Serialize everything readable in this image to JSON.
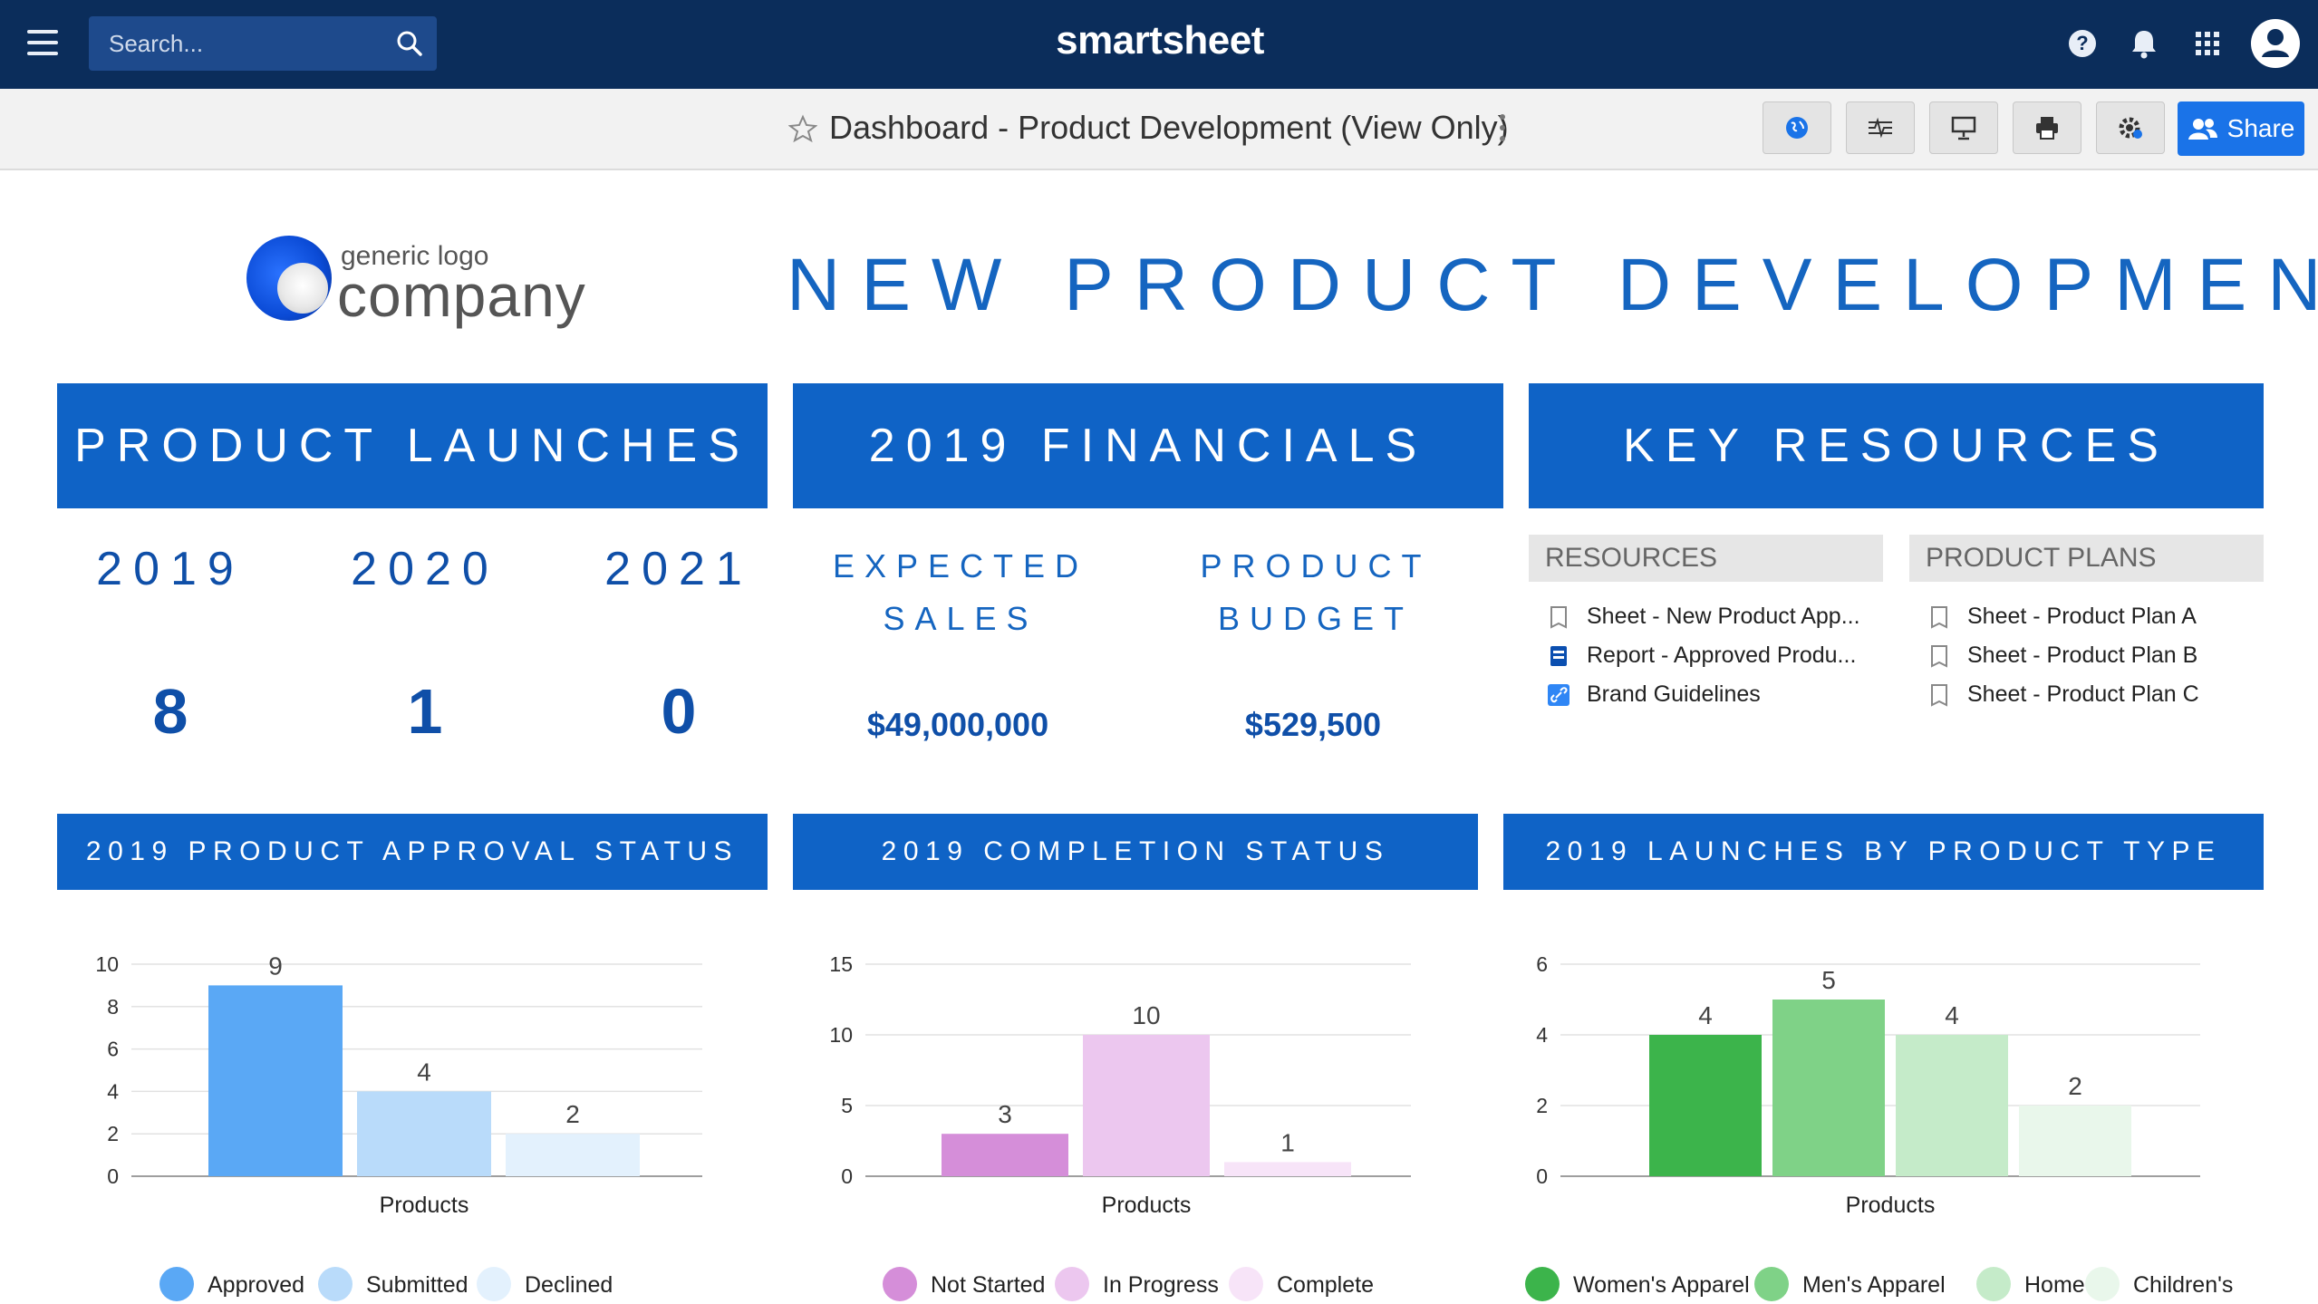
{
  "nav": {
    "search_placeholder": "Search...",
    "brand": "smartsheet"
  },
  "toolbar": {
    "title": "Dashboard - Product Development (View Only)",
    "share_label": "Share"
  },
  "logo": {
    "line1": "generic logo",
    "line2": "company"
  },
  "page_title": "NEW PRODUCT DEVELOPMENT",
  "sections": {
    "launches": "PRODUCT LAUNCHES",
    "financials": "2019 FINANCIALS",
    "resources": "KEY RESOURCES",
    "approval": "2019 PRODUCT APPROVAL STATUS",
    "completion": "2019 COMPLETION STATUS",
    "types": "2019 LAUNCHES BY PRODUCT TYPE"
  },
  "launches": [
    {
      "year": "2019",
      "count": "8"
    },
    {
      "year": "2020",
      "count": "1"
    },
    {
      "year": "2021",
      "count": "0"
    }
  ],
  "financials": {
    "expected_label_1": "EXPECTED",
    "expected_label_2": "SALES",
    "expected_value": "$49,000,000",
    "budget_label_1": "PRODUCT",
    "budget_label_2": "BUDGET",
    "budget_value": "$529,500"
  },
  "resources": {
    "col1_title": "RESOURCES",
    "col1_items": [
      {
        "label": "Sheet - New Product App...",
        "icon": "sheet-icon"
      },
      {
        "label": "Report - Approved Produ...",
        "icon": "report-icon"
      },
      {
        "label": "Brand Guidelines",
        "icon": "link-icon"
      }
    ],
    "col2_title": "PRODUCT PLANS",
    "col2_items": [
      {
        "label": "Sheet - Product Plan A",
        "icon": "sheet-icon"
      },
      {
        "label": "Sheet - Product Plan B",
        "icon": "sheet-icon"
      },
      {
        "label": "Sheet - Product Plan C",
        "icon": "sheet-icon"
      }
    ]
  },
  "chart_data": [
    {
      "type": "bar",
      "categories": [
        "Products"
      ],
      "xlabel": "Products",
      "ylim": [
        0,
        10
      ],
      "yticks": [
        0,
        2,
        4,
        6,
        8,
        10
      ],
      "series": [
        {
          "name": "Approved",
          "values": [
            9
          ],
          "color": "#5aa8f5"
        },
        {
          "name": "Submitted",
          "values": [
            4
          ],
          "color": "#b9dbfa"
        },
        {
          "name": "Declined",
          "values": [
            2
          ],
          "color": "#e3f1fd"
        }
      ]
    },
    {
      "type": "bar",
      "categories": [
        "Products"
      ],
      "xlabel": "Products",
      "ylim": [
        0,
        15
      ],
      "yticks": [
        0,
        5,
        10,
        15
      ],
      "series": [
        {
          "name": "Not Started",
          "values": [
            3
          ],
          "color": "#d58ed9"
        },
        {
          "name": "In Progress",
          "values": [
            10
          ],
          "color": "#ecc7ef"
        },
        {
          "name": "Complete",
          "values": [
            1
          ],
          "color": "#f7e4f8"
        }
      ]
    },
    {
      "type": "bar",
      "categories": [
        "Products"
      ],
      "xlabel": "Products",
      "ylim": [
        0,
        6
      ],
      "yticks": [
        0,
        2,
        4,
        6
      ],
      "series": [
        {
          "name": "Women's Apparel",
          "values": [
            4
          ],
          "color": "#3cb44b"
        },
        {
          "name": "Men's Apparel",
          "values": [
            5
          ],
          "color": "#7fd287"
        },
        {
          "name": "Home",
          "values": [
            4
          ],
          "color": "#c5ebc9"
        },
        {
          "name": "Children's",
          "values": [
            2
          ],
          "color": "#e9f7eb"
        }
      ]
    }
  ]
}
